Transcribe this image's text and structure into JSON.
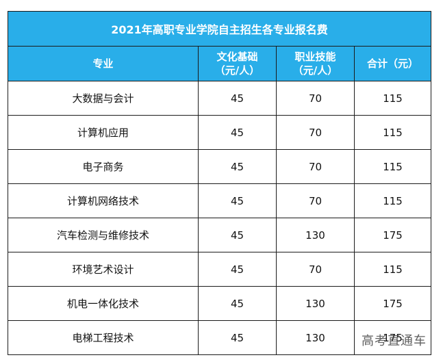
{
  "table": {
    "title": "2021年高职专业学院自主招生各专业报名费",
    "headers": {
      "major": "专业",
      "culture_line1": "文化基础",
      "culture_line2": "（元/人）",
      "skill_line1": "职业技能",
      "skill_line2": "（元/人）",
      "total": "合计（元）"
    },
    "rows": [
      {
        "major": "大数据与会计",
        "culture": "45",
        "skill": "70",
        "total": "115"
      },
      {
        "major": "计算机应用",
        "culture": "45",
        "skill": "70",
        "total": "115"
      },
      {
        "major": "电子商务",
        "culture": "45",
        "skill": "70",
        "total": "115"
      },
      {
        "major": "计算机网络技术",
        "culture": "45",
        "skill": "70",
        "total": "115"
      },
      {
        "major": "汽车检测与维修技术",
        "culture": "45",
        "skill": "130",
        "total": "175"
      },
      {
        "major": "环境艺术设计",
        "culture": "45",
        "skill": "70",
        "total": "115"
      },
      {
        "major": "机电一体化技术",
        "culture": "45",
        "skill": "130",
        "total": "175"
      },
      {
        "major": "电梯工程技术",
        "culture": "45",
        "skill": "130",
        "total": "175"
      }
    ]
  },
  "watermark": "高考直通车",
  "colors": {
    "header_bg": "#29aee9",
    "header_text": "#ffffff"
  }
}
